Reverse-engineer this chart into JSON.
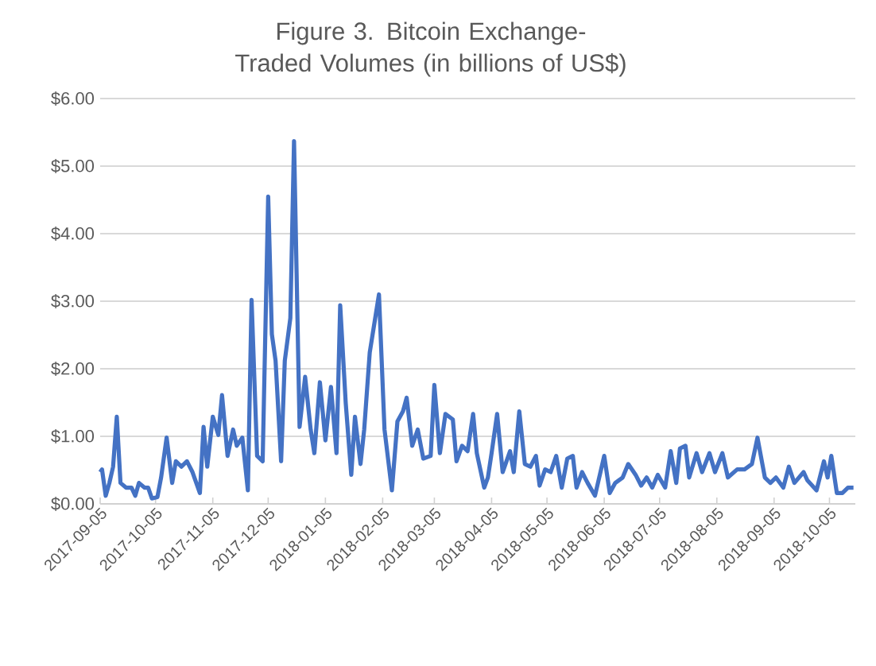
{
  "chart_data": {
    "type": "line",
    "title": "Figure 3. Bitcoin Exchange-Traded Volumes (in billions of US$)",
    "x": [
      "2017-09-05",
      "2017-09-06",
      "2017-09-08",
      "2017-09-10",
      "2017-09-12",
      "2017-09-14",
      "2017-09-16",
      "2017-09-19",
      "2017-09-22",
      "2017-09-24",
      "2017-09-26",
      "2017-09-29",
      "2017-10-01",
      "2017-10-03",
      "2017-10-06",
      "2017-10-08",
      "2017-10-11",
      "2017-10-14",
      "2017-10-16",
      "2017-10-19",
      "2017-10-22",
      "2017-10-25",
      "2017-10-29",
      "2017-10-31",
      "2017-11-02",
      "2017-11-05",
      "2017-11-08",
      "2017-11-10",
      "2017-11-13",
      "2017-11-16",
      "2017-11-18",
      "2017-11-21",
      "2017-11-24",
      "2017-11-26",
      "2017-11-29",
      "2017-12-02",
      "2017-12-05",
      "2017-12-07",
      "2017-12-09",
      "2017-12-12",
      "2017-12-14",
      "2017-12-17",
      "2017-12-19",
      "2017-12-22",
      "2017-12-25",
      "2017-12-28",
      "2017-12-30",
      "2018-01-02",
      "2018-01-05",
      "2018-01-08",
      "2018-01-11",
      "2018-01-13",
      "2018-01-16",
      "2018-01-19",
      "2018-01-21",
      "2018-01-24",
      "2018-01-26",
      "2018-01-29",
      "2018-02-03",
      "2018-02-06",
      "2018-02-10",
      "2018-02-13",
      "2018-02-16",
      "2018-02-18",
      "2018-02-21",
      "2018-02-24",
      "2018-02-27",
      "2018-03-03",
      "2018-03-05",
      "2018-03-08",
      "2018-03-11",
      "2018-03-15",
      "2018-03-17",
      "2018-03-20",
      "2018-03-23",
      "2018-03-26",
      "2018-03-28",
      "2018-04-01",
      "2018-04-03",
      "2018-04-05",
      "2018-04-08",
      "2018-04-11",
      "2018-04-15",
      "2018-04-17",
      "2018-04-20",
      "2018-04-23",
      "2018-04-26",
      "2018-04-29",
      "2018-05-01",
      "2018-05-04",
      "2018-05-07",
      "2018-05-10",
      "2018-05-13",
      "2018-05-16",
      "2018-05-19",
      "2018-05-21",
      "2018-05-24",
      "2018-05-27",
      "2018-05-31",
      "2018-06-05",
      "2018-06-08",
      "2018-06-11",
      "2018-06-15",
      "2018-06-18",
      "2018-06-22",
      "2018-06-25",
      "2018-06-28",
      "2018-07-01",
      "2018-07-04",
      "2018-07-08",
      "2018-07-11",
      "2018-07-14",
      "2018-07-16",
      "2018-07-19",
      "2018-07-21",
      "2018-07-25",
      "2018-07-28",
      "2018-08-01",
      "2018-08-04",
      "2018-08-08",
      "2018-08-11",
      "2018-08-16",
      "2018-08-20",
      "2018-08-24",
      "2018-08-27",
      "2018-08-31",
      "2018-09-03",
      "2018-09-06",
      "2018-09-10",
      "2018-09-13",
      "2018-09-16",
      "2018-09-21",
      "2018-09-23",
      "2018-09-28",
      "2018-10-02",
      "2018-10-04",
      "2018-10-06",
      "2018-10-09",
      "2018-10-12",
      "2018-10-15",
      "2018-10-18"
    ],
    "values": [
      0.47,
      0.51,
      0.12,
      0.31,
      0.55,
      1.29,
      0.31,
      0.24,
      0.24,
      0.12,
      0.31,
      0.24,
      0.24,
      0.08,
      0.1,
      0.39,
      0.98,
      0.31,
      0.63,
      0.55,
      0.63,
      0.47,
      0.16,
      1.14,
      0.55,
      1.29,
      1.02,
      1.61,
      0.71,
      1.1,
      0.86,
      0.98,
      0.2,
      3.02,
      0.71,
      0.63,
      4.55,
      2.51,
      2.12,
      0.63,
      2.12,
      2.75,
      5.37,
      1.14,
      1.88,
      1.1,
      0.75,
      1.8,
      0.94,
      1.73,
      0.75,
      2.94,
      1.49,
      0.43,
      1.29,
      0.59,
      1.1,
      2.24,
      3.1,
      1.1,
      0.2,
      1.22,
      1.37,
      1.57,
      0.86,
      1.1,
      0.67,
      0.71,
      1.76,
      0.75,
      1.33,
      1.25,
      0.63,
      0.86,
      0.78,
      1.33,
      0.75,
      0.24,
      0.39,
      0.75,
      1.33,
      0.47,
      0.78,
      0.47,
      1.37,
      0.59,
      0.55,
      0.71,
      0.27,
      0.51,
      0.47,
      0.71,
      0.24,
      0.67,
      0.71,
      0.24,
      0.47,
      0.31,
      0.12,
      0.71,
      0.16,
      0.31,
      0.39,
      0.59,
      0.43,
      0.27,
      0.39,
      0.24,
      0.43,
      0.24,
      0.78,
      0.31,
      0.82,
      0.86,
      0.39,
      0.75,
      0.47,
      0.75,
      0.47,
      0.75,
      0.39,
      0.51,
      0.51,
      0.59,
      0.98,
      0.39,
      0.31,
      0.39,
      0.24,
      0.55,
      0.31,
      0.47,
      0.35,
      0.2,
      0.63,
      0.39,
      0.71,
      0.16,
      0.16,
      0.24,
      0.24
    ],
    "color": "#4472c4",
    "line_style": "solid",
    "xlim": [
      "2017-09-05",
      "2018-10-19"
    ],
    "xticks": [
      "2017-09-05",
      "2017-10-05",
      "2017-11-05",
      "2017-12-05",
      "2018-01-05",
      "2018-02-05",
      "2018-03-05",
      "2018-04-05",
      "2018-05-05",
      "2018-06-05",
      "2018-07-05",
      "2018-08-05",
      "2018-09-05",
      "2018-10-05"
    ],
    "ylim": [
      0,
      6
    ],
    "yticks": [
      {
        "value": 0,
        "label": "$0.00"
      },
      {
        "value": 1,
        "label": "$1.00"
      },
      {
        "value": 2,
        "label": "$2.00"
      },
      {
        "value": 3,
        "label": "$3.00"
      },
      {
        "value": 4,
        "label": "$4.00"
      },
      {
        "value": 5,
        "label": "$5.00"
      },
      {
        "value": 6,
        "label": "$6.00"
      }
    ],
    "grid": "y"
  }
}
